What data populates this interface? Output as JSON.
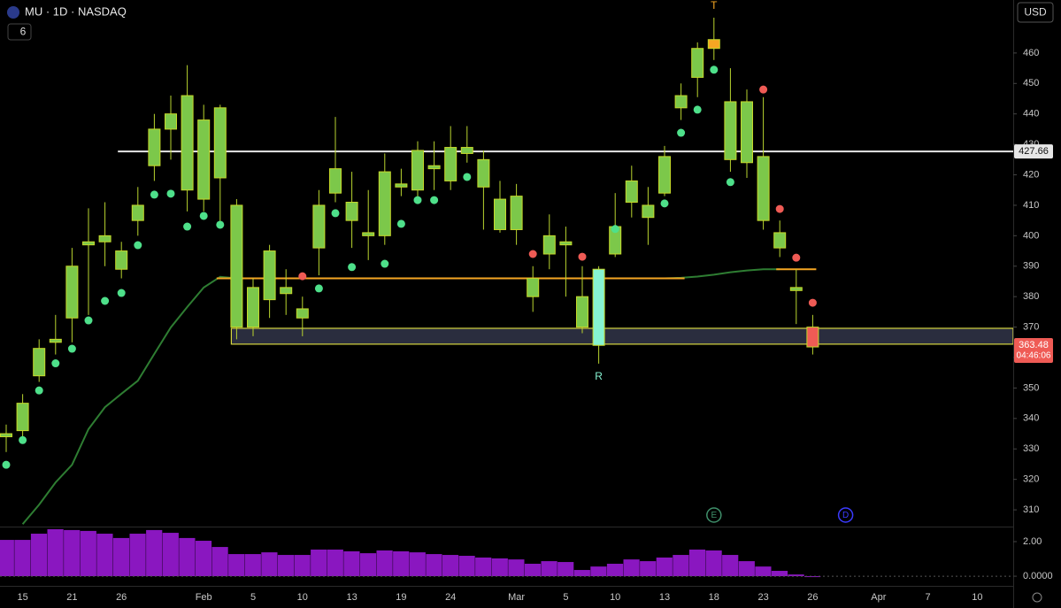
{
  "chart_data": {
    "type": "candlestick",
    "symbol": "MU · 1D · NASDAQ",
    "indicator_count": "6",
    "currency": "USD",
    "categories": [
      null,
      "15",
      null,
      null,
      "21",
      null,
      null,
      "26",
      null,
      null,
      null,
      null,
      "Feb",
      null,
      null,
      "5",
      null,
      null,
      "10",
      null,
      null,
      "13",
      null,
      null,
      "19",
      null,
      null,
      "24",
      null,
      null,
      null,
      "Mar",
      null,
      null,
      "5",
      null,
      null,
      "10",
      null,
      null,
      "13",
      null,
      null,
      "18",
      null,
      null,
      "23",
      null,
      null,
      "26",
      null,
      null,
      null,
      "Apr",
      null,
      null,
      "7",
      null,
      null,
      "10"
    ],
    "open": [
      334,
      336,
      354,
      365,
      373,
      397,
      398,
      389,
      405,
      423,
      435,
      415,
      412,
      419,
      410,
      370,
      379,
      381,
      373,
      396,
      414,
      405,
      400,
      400,
      416,
      415,
      422,
      418,
      427,
      425,
      412,
      413,
      380,
      394,
      398,
      370,
      364,
      394,
      411,
      406,
      414,
      442,
      452,
      461.5,
      425,
      424,
      426,
      396,
      383,
      370,
      null,
      null,
      null,
      null,
      null,
      null,
      null,
      null,
      null,
      null
    ],
    "high": [
      338,
      348,
      366,
      374,
      396,
      409,
      411,
      398,
      416,
      440,
      446,
      456,
      443,
      443,
      412,
      386,
      397,
      389,
      380,
      415,
      439,
      421,
      415,
      427,
      422,
      431,
      431,
      436,
      436,
      428,
      418,
      417,
      390,
      407,
      403,
      390,
      390,
      414,
      423,
      416,
      429.5,
      450,
      463.5,
      471.6,
      455,
      448,
      445.5,
      405,
      389,
      374,
      null,
      null,
      null,
      null,
      null,
      null,
      null,
      null,
      null,
      null
    ],
    "low": [
      329,
      334,
      352,
      361,
      365,
      374,
      390,
      386,
      400,
      418,
      425,
      408,
      408,
      403,
      366,
      367,
      373,
      374,
      367,
      387,
      411,
      396,
      392,
      397,
      413,
      412,
      415,
      415,
      424,
      402,
      401,
      397,
      375,
      389,
      380,
      368,
      358,
      393,
      406,
      397,
      413,
      438,
      445.5,
      457.7,
      421,
      419,
      402,
      393,
      371,
      361,
      null,
      null,
      null,
      null,
      null,
      null,
      null,
      null,
      null,
      null
    ],
    "close": [
      335,
      345,
      363,
      366,
      390,
      398,
      400,
      395,
      410,
      435,
      440,
      446,
      438,
      442,
      370,
      383,
      395,
      383,
      376,
      410,
      422,
      411,
      401,
      421,
      417,
      428,
      423,
      429,
      429,
      416,
      402,
      402,
      386,
      400,
      397,
      380,
      389,
      403,
      418,
      410,
      426,
      446,
      461.5,
      464.4,
      444,
      444,
      405,
      401,
      382,
      363.48,
      null,
      null,
      null,
      null,
      null,
      null,
      null,
      null,
      null,
      null
    ],
    "candle_color": "#7cc84a",
    "candle_colors": [
      null,
      null,
      null,
      null,
      null,
      null,
      null,
      null,
      null,
      null,
      null,
      null,
      null,
      null,
      null,
      null,
      null,
      null,
      null,
      null,
      null,
      null,
      null,
      null,
      null,
      null,
      null,
      null,
      null,
      null,
      null,
      null,
      null,
      null,
      null,
      null,
      "#86f3d2",
      null,
      null,
      null,
      null,
      null,
      null,
      "#f5a623",
      null,
      null,
      null,
      null,
      null,
      "#ef5b55",
      null,
      null,
      null,
      null,
      null,
      null,
      null,
      null,
      null,
      null
    ],
    "signals_up": [
      324.8,
      332.9,
      349.2,
      358.1,
      362.9,
      372.2,
      378.6,
      381.2,
      396.9,
      413.5,
      413.8,
      403,
      406.5,
      403.6,
      null,
      null,
      null,
      null,
      null,
      382.7,
      407.4,
      389.7,
      null,
      390.8,
      403.9,
      411.7,
      411.7,
      null,
      419.3,
      null,
      null,
      null,
      null,
      null,
      null,
      null,
      null,
      402.2,
      null,
      null,
      410.6,
      433.8,
      441.4,
      454.5,
      417.6,
      null,
      null,
      null,
      null,
      null,
      null,
      null,
      null,
      null,
      null,
      null,
      null,
      null,
      null,
      null
    ],
    "signals_down": [
      null,
      null,
      null,
      null,
      null,
      null,
      null,
      null,
      null,
      null,
      null,
      null,
      null,
      null,
      null,
      null,
      null,
      null,
      386.7,
      null,
      null,
      null,
      null,
      null,
      null,
      null,
      null,
      null,
      null,
      null,
      null,
      null,
      394,
      null,
      null,
      393.1,
      null,
      null,
      null,
      null,
      null,
      null,
      null,
      null,
      null,
      null,
      448,
      408.8,
      392.8,
      378,
      null,
      null,
      null,
      null,
      null,
      null,
      null,
      null,
      null,
      null
    ],
    "signal_up_color": "#4ee08a",
    "signal_down_color": "#ef5b55",
    "ma": [
      null,
      305.3,
      311.7,
      319,
      324.8,
      336.5,
      343.7,
      348.1,
      352.4,
      361.2,
      369.9,
      376.6,
      383,
      386.5,
      386,
      386,
      386,
      386,
      386,
      386,
      386,
      386,
      386,
      386,
      386,
      386,
      386,
      386,
      386,
      386,
      386,
      386,
      386,
      386,
      386,
      386,
      386,
      386,
      386,
      386,
      386,
      386.2,
      386.6,
      387.2,
      388,
      388.6,
      389,
      389,
      null,
      null,
      null,
      null,
      null,
      null,
      null,
      null,
      null,
      null,
      null,
      null
    ],
    "ma_color": "#2e7d32",
    "levels": [
      {
        "value": 427.66,
        "label": "427.66",
        "color": "#e6e6e6",
        "from": 7
      },
      {
        "value": 386,
        "color": "#f5a623",
        "from": 13,
        "to": 41
      },
      {
        "value": 389,
        "color": "#f5a623",
        "from": 47,
        "to": 49
      }
    ],
    "zone": {
      "low": 364.4,
      "high": 369.6,
      "from": 14,
      "color": "#d6d640"
    },
    "last_label": "363.48",
    "countdown": "04:46:06",
    "markers": [
      {
        "label": "T",
        "index": 43,
        "color": "#f5a623",
        "place": "above"
      },
      {
        "label": "R",
        "index": 36,
        "color": "#86f3d2",
        "place": "below"
      }
    ],
    "events": [
      {
        "label": "E",
        "index": 43,
        "color": "#3f8f6a"
      },
      {
        "label": "D",
        "index": 51,
        "color": "#3b3bff"
      }
    ],
    "ylim": [
      304.5,
      477.4
    ],
    "yticks": [
      310,
      320,
      330,
      340,
      350,
      360,
      370,
      380,
      390,
      400,
      410,
      420,
      430,
      440,
      450,
      460
    ],
    "histogram": {
      "values": [
        2.1,
        2.1,
        2.46,
        2.72,
        2.67,
        2.62,
        2.46,
        2.21,
        2.46,
        2.67,
        2.51,
        2.21,
        2.05,
        1.69,
        1.28,
        1.28,
        1.38,
        1.23,
        1.23,
        1.54,
        1.54,
        1.44,
        1.33,
        1.49,
        1.44,
        1.38,
        1.28,
        1.23,
        1.18,
        1.08,
        1.03,
        0.97,
        0.72,
        0.87,
        0.82,
        0.36,
        0.56,
        0.72,
        0.97,
        0.87,
        1.08,
        1.23,
        1.54,
        1.49,
        1.23,
        0.87,
        0.56,
        0.31,
        0.1,
        -0.05,
        null,
        null,
        null,
        null,
        null,
        null,
        null,
        null,
        null,
        null
      ],
      "color": "#8a17c0",
      "ylim": [
        -0.56,
        2.82
      ],
      "yticks": [
        {
          "value": 0,
          "label": "0.0000"
        },
        {
          "value": 2,
          "label": "2.00"
        }
      ]
    }
  }
}
